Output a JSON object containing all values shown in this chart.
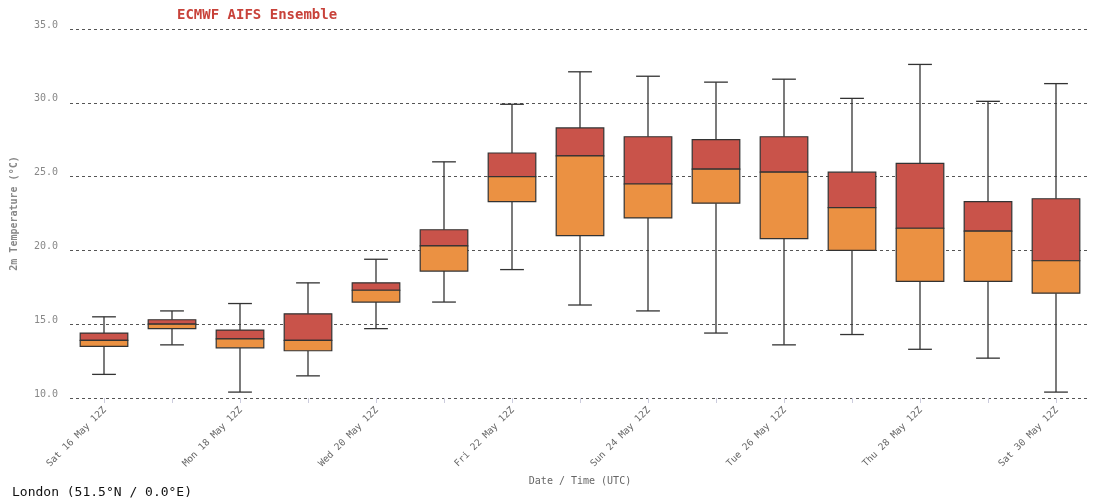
{
  "chart_data": {
    "type": "box",
    "title": "ECMWF AIFS Ensemble",
    "xlabel": "Date / Time (UTC)",
    "ylabel": "2m Temperature (°C)",
    "categories": [
      "Sat 16 May 12Z",
      null,
      "Mon 18 May 12Z",
      null,
      "Wed 20 May 12Z",
      null,
      "Fri 22 May 12Z",
      null,
      "Sun 24 May 12Z",
      null,
      "Tue 26 May 12Z",
      null,
      "Thu 28 May 12Z",
      null,
      "Sat 30 May 12Z"
    ],
    "series": [
      {
        "color": "#c9534a",
        "colors": [
          "#eb9142",
          "#eb9142",
          "#eb9142",
          "#eb9142",
          "#eb9142",
          "#eb9142",
          "#eb9142",
          "#eb9142",
          "#eb9142",
          "#eb9142",
          "#eb9142",
          "#eb9142",
          "#eb9142",
          "#eb9142",
          "#eb9142"
        ],
        "boxes": [
          {
            "low": 11.6,
            "q1": 13.5,
            "median": 13.9,
            "q3": 14.4,
            "high": 15.5
          },
          {
            "low": 13.6,
            "q1": 14.7,
            "median": 15.0,
            "q3": 15.3,
            "high": 15.9
          },
          {
            "low": 10.4,
            "q1": 13.4,
            "median": 14.0,
            "q3": 14.6,
            "high": 16.4
          },
          {
            "low": 11.5,
            "q1": 13.2,
            "median": 13.9,
            "q3": 15.7,
            "high": 17.8
          },
          {
            "low": 14.7,
            "q1": 16.5,
            "median": 17.3,
            "q3": 17.8,
            "high": 19.4
          },
          {
            "low": 16.5,
            "q1": 18.6,
            "median": 20.3,
            "q3": 21.4,
            "high": 26.0
          },
          {
            "low": 18.7,
            "q1": 23.3,
            "median": 25.0,
            "q3": 26.6,
            "high": 29.9
          },
          {
            "low": 16.3,
            "q1": 21.0,
            "median": 26.4,
            "q3": 28.3,
            "high": 32.1
          },
          {
            "low": 15.9,
            "q1": 22.2,
            "median": 24.5,
            "q3": 27.7,
            "high": 31.8
          },
          {
            "low": 14.4,
            "q1": 23.2,
            "median": 25.5,
            "q3": 27.5,
            "high": 31.4
          },
          {
            "low": 13.6,
            "q1": 20.8,
            "median": 25.3,
            "q3": 27.7,
            "high": 31.6
          },
          {
            "low": 14.3,
            "q1": 20.0,
            "median": 22.9,
            "q3": 25.3,
            "high": 30.3
          },
          {
            "low": 13.3,
            "q1": 17.9,
            "median": 21.5,
            "q3": 25.9,
            "high": 32.6
          },
          {
            "low": 12.7,
            "q1": 17.9,
            "median": 21.3,
            "q3": 23.3,
            "high": 30.1
          },
          {
            "low": 10.4,
            "q1": 17.1,
            "median": 19.3,
            "q3": 23.5,
            "high": 31.3
          }
        ]
      }
    ],
    "ylim": [
      10,
      35
    ],
    "yticks": [
      {
        "value": 10,
        "label": "10.0"
      },
      {
        "value": 15,
        "label": "15.0"
      },
      {
        "value": 20,
        "label": "20.0"
      },
      {
        "value": 25,
        "label": "25.0"
      },
      {
        "value": 30,
        "label": "30.0"
      },
      {
        "value": 35,
        "label": "35.0"
      }
    ],
    "grid": "y",
    "annotations": [
      "London (51.5°N / 0.0°E)"
    ]
  }
}
